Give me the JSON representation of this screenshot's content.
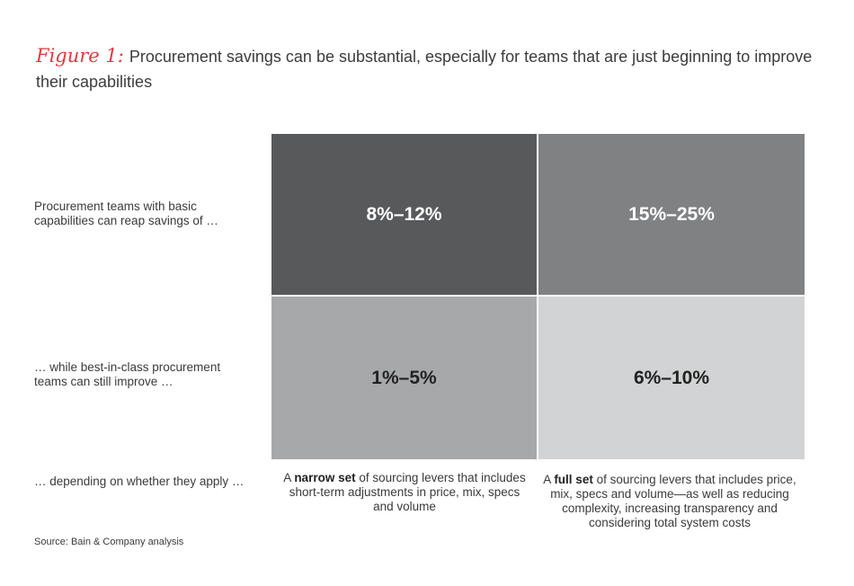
{
  "title": {
    "figure_label": "Figure 1:",
    "text": "Procurement savings can be substantial, especially for teams that are just beginning to improve their capabilities"
  },
  "row_labels": [
    "Procurement teams with basic capabilities can reap savings of …",
    "… while best-in-class procurement teams can still improve …",
    "… depending on whether they apply …"
  ],
  "column_notes": [
    {
      "bold": "narrow set",
      "before": "A ",
      "after": " of sourcing levers that includes short-term adjustments in price, mix, specs and volume"
    },
    {
      "bold": "full set",
      "before": "A ",
      "after": " of sourcing levers that includes price, mix, specs and volume—as well as reducing complexity, increasing transparency and considering total system costs"
    }
  ],
  "source": "Source: Bain & Company analysis",
  "colors": {
    "accent": "#e0393e",
    "cell_dark": "#58595b",
    "cell_mid_dark": "#808183",
    "cell_mid_light": "#a7a8aa",
    "cell_light": "#d2d3d4"
  },
  "chart_data": {
    "type": "table",
    "rows": [
      "Procurement teams with basic capabilities can reap savings of …",
      "… while best-in-class procurement teams can still improve …"
    ],
    "columns": [
      "narrow set",
      "full set"
    ],
    "cells": [
      [
        "8%–12%",
        "15%–25%"
      ],
      [
        "1%–5%",
        "6%–10%"
      ]
    ]
  }
}
